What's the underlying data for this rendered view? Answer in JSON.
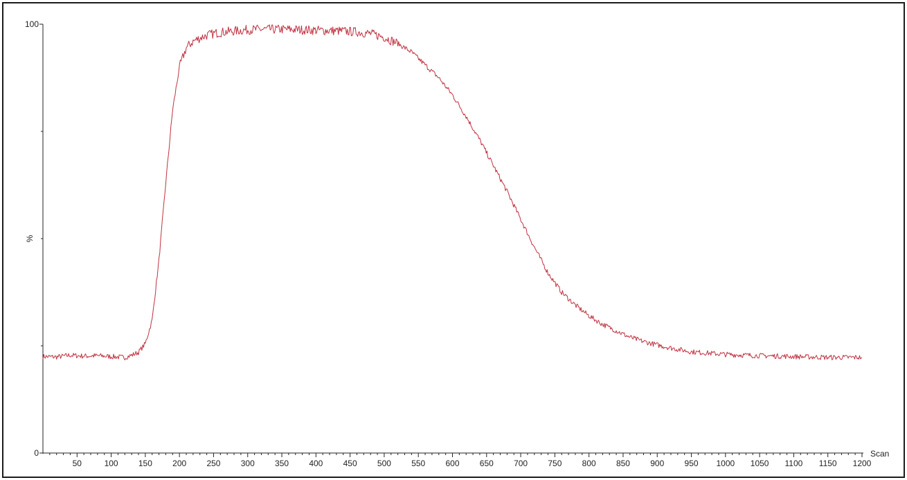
{
  "chart_data": {
    "type": "line",
    "title": "",
    "xlabel": "Scan",
    "ylabel": "%",
    "xlim": [
      0,
      1200
    ],
    "ylim": [
      0,
      100
    ],
    "x_major_ticks": [
      50,
      100,
      150,
      200,
      250,
      300,
      350,
      400,
      450,
      500,
      550,
      600,
      650,
      700,
      750,
      800,
      850,
      900,
      950,
      1000,
      1050,
      1100,
      1150,
      1200
    ],
    "x_minor_step": 10,
    "y_tick_labels": [
      "0",
      "100"
    ],
    "y_tick_values": [
      0,
      100
    ],
    "y_minor_ticks": [
      25,
      50,
      75
    ],
    "grid": false,
    "legend": "none",
    "series_color": "#c0303f",
    "series": [
      {
        "x": [
          0,
          20,
          40,
          60,
          80,
          100,
          120,
          130,
          140,
          150,
          160,
          170,
          180,
          190,
          200,
          210,
          220,
          230,
          240,
          250,
          260,
          280,
          300,
          320,
          340,
          360,
          380,
          400,
          420,
          440,
          460,
          480,
          500,
          520,
          540,
          560,
          580,
          600,
          620,
          640,
          660,
          680,
          700,
          720,
          740,
          760,
          780,
          800,
          820,
          840,
          860,
          880,
          900,
          920,
          950,
          1000,
          1050,
          1100,
          1150,
          1200
        ],
        "y": [
          22.5,
          22.4,
          22.8,
          22.6,
          22.7,
          22.5,
          22.3,
          22.8,
          23.5,
          25.5,
          31,
          45,
          63,
          80,
          90,
          94.5,
          96,
          96.8,
          97.4,
          97.8,
          98.1,
          98.4,
          98.7,
          98.8,
          98.8,
          98.8,
          98.7,
          98.6,
          98.5,
          98.4,
          98.2,
          97.8,
          97,
          95.5,
          93.5,
          90.5,
          87.5,
          83.5,
          78.5,
          73,
          67,
          61,
          54.5,
          48,
          42,
          37.5,
          34.5,
          32,
          30,
          28.5,
          27,
          26,
          25.2,
          24.5,
          23.6,
          23,
          22.7,
          22.5,
          22.3,
          22.3
        ]
      }
    ]
  }
}
